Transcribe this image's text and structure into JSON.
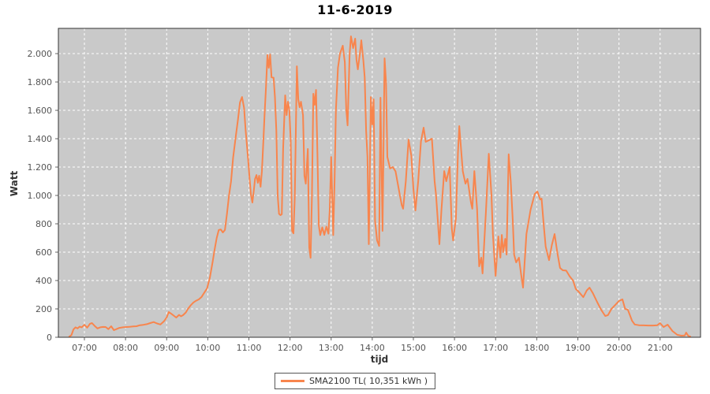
{
  "chart_data": {
    "type": "line",
    "title": "11-6-2019",
    "xlabel": "tijd",
    "ylabel": "Watt",
    "grid": true,
    "legend_position": "bottom-center",
    "x_domain": [
      "06:22",
      "21:59"
    ],
    "ylim": [
      0,
      2178
    ],
    "x_ticks": [
      "07:00",
      "08:00",
      "09:00",
      "10:00",
      "11:00",
      "12:00",
      "13:00",
      "14:00",
      "15:00",
      "16:00",
      "17:00",
      "18:00",
      "19:00",
      "20:00",
      "21:00"
    ],
    "y_ticks": [
      {
        "v": 0,
        "label": "0"
      },
      {
        "v": 200,
        "label": "200"
      },
      {
        "v": 400,
        "label": "400"
      },
      {
        "v": 600,
        "label": "600"
      },
      {
        "v": 800,
        "label": "800"
      },
      {
        "v": 1000,
        "label": "1.000"
      },
      {
        "v": 1200,
        "label": "1.200"
      },
      {
        "v": 1400,
        "label": "1.400"
      },
      {
        "v": 1600,
        "label": "1.600"
      },
      {
        "v": 1800,
        "label": "1.800"
      },
      {
        "v": 2000,
        "label": "2.000"
      }
    ],
    "colors": {
      "line": "#F8854D",
      "plot_bg": "#C9C9C9",
      "grid": "#FFFFFF",
      "border": "#333333",
      "tick_mark": "#666666"
    },
    "series": [
      {
        "name": "SMA2100 TL( 10,351 kWh )",
        "color": "#F8854D",
        "points": [
          [
            "06:38",
            5
          ],
          [
            "06:41",
            15
          ],
          [
            "06:44",
            55
          ],
          [
            "06:47",
            70
          ],
          [
            "06:50",
            62
          ],
          [
            "06:53",
            75
          ],
          [
            "06:56",
            70
          ],
          [
            "07:00",
            88
          ],
          [
            "07:04",
            68
          ],
          [
            "07:08",
            95
          ],
          [
            "07:11",
            100
          ],
          [
            "07:15",
            80
          ],
          [
            "07:19",
            62
          ],
          [
            "07:23",
            70
          ],
          [
            "07:27",
            73
          ],
          [
            "07:31",
            72
          ],
          [
            "07:35",
            57
          ],
          [
            "07:39",
            78
          ],
          [
            "07:43",
            50
          ],
          [
            "07:47",
            58
          ],
          [
            "07:51",
            66
          ],
          [
            "07:56",
            70
          ],
          [
            "08:01",
            72
          ],
          [
            "08:06",
            74
          ],
          [
            "08:11",
            76
          ],
          [
            "08:16",
            78
          ],
          [
            "08:21",
            85
          ],
          [
            "08:26",
            88
          ],
          [
            "08:31",
            92
          ],
          [
            "08:36",
            100
          ],
          [
            "08:41",
            107
          ],
          [
            "08:46",
            97
          ],
          [
            "08:51",
            90
          ],
          [
            "08:56",
            112
          ],
          [
            "09:00",
            140
          ],
          [
            "09:03",
            178
          ],
          [
            "09:07",
            165
          ],
          [
            "09:11",
            150
          ],
          [
            "09:14",
            139
          ],
          [
            "09:18",
            158
          ],
          [
            "09:21",
            148
          ],
          [
            "09:24",
            156
          ],
          [
            "09:28",
            175
          ],
          [
            "09:31",
            200
          ],
          [
            "09:35",
            225
          ],
          [
            "09:39",
            245
          ],
          [
            "09:43",
            258
          ],
          [
            "09:47",
            267
          ],
          [
            "09:51",
            285
          ],
          [
            "09:55",
            315
          ],
          [
            "09:59",
            345
          ],
          [
            "10:03",
            420
          ],
          [
            "10:07",
            530
          ],
          [
            "10:10",
            620
          ],
          [
            "10:13",
            700
          ],
          [
            "10:16",
            756
          ],
          [
            "10:19",
            760
          ],
          [
            "10:22",
            739
          ],
          [
            "10:25",
            756
          ],
          [
            "10:28",
            870
          ],
          [
            "10:31",
            1000
          ],
          [
            "10:34",
            1100
          ],
          [
            "10:37",
            1267
          ],
          [
            "10:41",
            1422
          ],
          [
            "10:44",
            1533
          ],
          [
            "10:47",
            1656
          ],
          [
            "10:50",
            1694
          ],
          [
            "10:53",
            1617
          ],
          [
            "10:55",
            1472
          ],
          [
            "10:57",
            1361
          ],
          [
            "10:59",
            1250
          ],
          [
            "11:01",
            1117
          ],
          [
            "11:03",
            1006
          ],
          [
            "11:05",
            950
          ],
          [
            "11:07",
            1028
          ],
          [
            "11:09",
            1117
          ],
          [
            "11:11",
            1144
          ],
          [
            "11:13",
            1089
          ],
          [
            "11:15",
            1139
          ],
          [
            "11:17",
            1061
          ],
          [
            "11:19",
            1172
          ],
          [
            "11:21",
            1378
          ],
          [
            "11:23",
            1583
          ],
          [
            "11:25",
            1767
          ],
          [
            "11:27",
            1990
          ],
          [
            "11:29",
            1900
          ],
          [
            "11:31",
            1994
          ],
          [
            "11:33",
            1833
          ],
          [
            "11:36",
            1830
          ],
          [
            "11:38",
            1694
          ],
          [
            "11:40",
            1456
          ],
          [
            "11:42",
            1000
          ],
          [
            "11:44",
            870
          ],
          [
            "11:46",
            861
          ],
          [
            "11:48",
            868
          ],
          [
            "11:50",
            1328
          ],
          [
            "11:53",
            1706
          ],
          [
            "11:55",
            1567
          ],
          [
            "11:57",
            1661
          ],
          [
            "11:59",
            1600
          ],
          [
            "12:01",
            1383
          ],
          [
            "12:03",
            750
          ],
          [
            "12:05",
            733
          ],
          [
            "12:07",
            994
          ],
          [
            "12:10",
            1911
          ],
          [
            "12:12",
            1678
          ],
          [
            "12:14",
            1622
          ],
          [
            "12:16",
            1661
          ],
          [
            "12:19",
            1567
          ],
          [
            "12:21",
            1139
          ],
          [
            "12:23",
            1083
          ],
          [
            "12:26",
            1328
          ],
          [
            "12:28",
            633
          ],
          [
            "12:30",
            560
          ],
          [
            "12:32",
            994
          ],
          [
            "12:34",
            1717
          ],
          [
            "12:36",
            1639
          ],
          [
            "12:38",
            1744
          ],
          [
            "12:40",
            1289
          ],
          [
            "12:42",
            789
          ],
          [
            "12:44",
            720
          ],
          [
            "12:47",
            775
          ],
          [
            "12:50",
            722
          ],
          [
            "12:53",
            780
          ],
          [
            "12:56",
            730
          ],
          [
            "12:58",
            900
          ],
          [
            "13:00",
            1272
          ],
          [
            "13:03",
            720
          ],
          [
            "13:05",
            1100
          ],
          [
            "13:07",
            1600
          ],
          [
            "13:10",
            1900
          ],
          [
            "13:13",
            2000
          ],
          [
            "13:17",
            2056
          ],
          [
            "13:20",
            1939
          ],
          [
            "13:22",
            1606
          ],
          [
            "13:24",
            1494
          ],
          [
            "13:27",
            2000
          ],
          [
            "13:29",
            2122
          ],
          [
            "13:32",
            2039
          ],
          [
            "13:35",
            2106
          ],
          [
            "13:37",
            1956
          ],
          [
            "13:39",
            1889
          ],
          [
            "13:42",
            2000
          ],
          [
            "13:44",
            2094
          ],
          [
            "13:47",
            1950
          ],
          [
            "13:49",
            1833
          ],
          [
            "13:51",
            1456
          ],
          [
            "13:53",
            1272
          ],
          [
            "13:55",
            656
          ],
          [
            "13:58",
            1694
          ],
          [
            "14:00",
            1500
          ],
          [
            "14:02",
            1678
          ],
          [
            "14:04",
            822
          ],
          [
            "14:07",
            683
          ],
          [
            "14:10",
            644
          ],
          [
            "14:12",
            1689
          ],
          [
            "14:15",
            750
          ],
          [
            "14:18",
            1967
          ],
          [
            "14:20",
            1800
          ],
          [
            "14:22",
            1272
          ],
          [
            "14:26",
            1190
          ],
          [
            "14:30",
            1200
          ],
          [
            "14:34",
            1170
          ],
          [
            "14:37",
            1090
          ],
          [
            "14:40",
            1010
          ],
          [
            "14:43",
            933
          ],
          [
            "14:45",
            906
          ],
          [
            "14:49",
            1100
          ],
          [
            "14:53",
            1394
          ],
          [
            "14:57",
            1280
          ],
          [
            "15:00",
            1050
          ],
          [
            "15:03",
            894
          ],
          [
            "15:07",
            1100
          ],
          [
            "15:11",
            1380
          ],
          [
            "15:15",
            1478
          ],
          [
            "15:18",
            1378
          ],
          [
            "15:23",
            1390
          ],
          [
            "15:27",
            1400
          ],
          [
            "15:31",
            1100
          ],
          [
            "15:33",
            1006
          ],
          [
            "15:38",
            656
          ],
          [
            "15:41",
            900
          ],
          [
            "15:45",
            1172
          ],
          [
            "15:48",
            1100
          ],
          [
            "15:53",
            1200
          ],
          [
            "15:56",
            767
          ],
          [
            "15:58",
            683
          ],
          [
            "16:02",
            839
          ],
          [
            "16:05",
            1300
          ],
          [
            "16:07",
            1489
          ],
          [
            "16:12",
            1172
          ],
          [
            "16:16",
            1083
          ],
          [
            "16:19",
            1117
          ],
          [
            "16:24",
            950
          ],
          [
            "16:26",
            906
          ],
          [
            "16:29",
            1172
          ],
          [
            "16:33",
            900
          ],
          [
            "16:36",
            500
          ],
          [
            "16:39",
            561
          ],
          [
            "16:41",
            450
          ],
          [
            "16:46",
            900
          ],
          [
            "16:50",
            1294
          ],
          [
            "16:54",
            1000
          ],
          [
            "16:56",
            728
          ],
          [
            "17:00",
            433
          ],
          [
            "17:04",
            711
          ],
          [
            "17:07",
            561
          ],
          [
            "17:09",
            722
          ],
          [
            "17:11",
            600
          ],
          [
            "17:14",
            694
          ],
          [
            "17:16",
            583
          ],
          [
            "17:19",
            1290
          ],
          [
            "17:22",
            1100
          ],
          [
            "17:25",
            822
          ],
          [
            "17:27",
            583
          ],
          [
            "17:30",
            528
          ],
          [
            "17:34",
            561
          ],
          [
            "17:37",
            450
          ],
          [
            "17:40",
            350
          ],
          [
            "17:45",
            728
          ],
          [
            "17:51",
            900
          ],
          [
            "17:57",
            1010
          ],
          [
            "18:01",
            1028
          ],
          [
            "18:05",
            972
          ],
          [
            "18:07",
            978
          ],
          [
            "18:10",
            800
          ],
          [
            "18:13",
            639
          ],
          [
            "18:18",
            544
          ],
          [
            "18:22",
            650
          ],
          [
            "18:26",
            728
          ],
          [
            "18:30",
            600
          ],
          [
            "18:34",
            489
          ],
          [
            "18:38",
            472
          ],
          [
            "18:43",
            470
          ],
          [
            "18:48",
            430
          ],
          [
            "18:53",
            400
          ],
          [
            "18:57",
            340
          ],
          [
            "19:01",
            322
          ],
          [
            "19:08",
            283
          ],
          [
            "19:13",
            330
          ],
          [
            "19:17",
            350
          ],
          [
            "19:22",
            310
          ],
          [
            "19:28",
            250
          ],
          [
            "19:34",
            194
          ],
          [
            "19:40",
            150
          ],
          [
            "19:44",
            156
          ],
          [
            "19:49",
            200
          ],
          [
            "19:55",
            230
          ],
          [
            "20:00",
            256
          ],
          [
            "20:05",
            267
          ],
          [
            "20:09",
            200
          ],
          [
            "20:13",
            194
          ],
          [
            "20:19",
            117
          ],
          [
            "20:23",
            90
          ],
          [
            "20:29",
            85
          ],
          [
            "20:36",
            84
          ],
          [
            "20:43",
            83
          ],
          [
            "20:50",
            83
          ],
          [
            "20:56",
            85
          ],
          [
            "21:00",
            100
          ],
          [
            "21:05",
            72
          ],
          [
            "21:11",
            89
          ],
          [
            "21:18",
            44
          ],
          [
            "21:25",
            17
          ],
          [
            "21:31",
            11
          ],
          [
            "21:36",
            12
          ],
          [
            "21:38",
            33
          ],
          [
            "21:41",
            10
          ],
          [
            "21:44",
            5
          ]
        ]
      }
    ]
  }
}
